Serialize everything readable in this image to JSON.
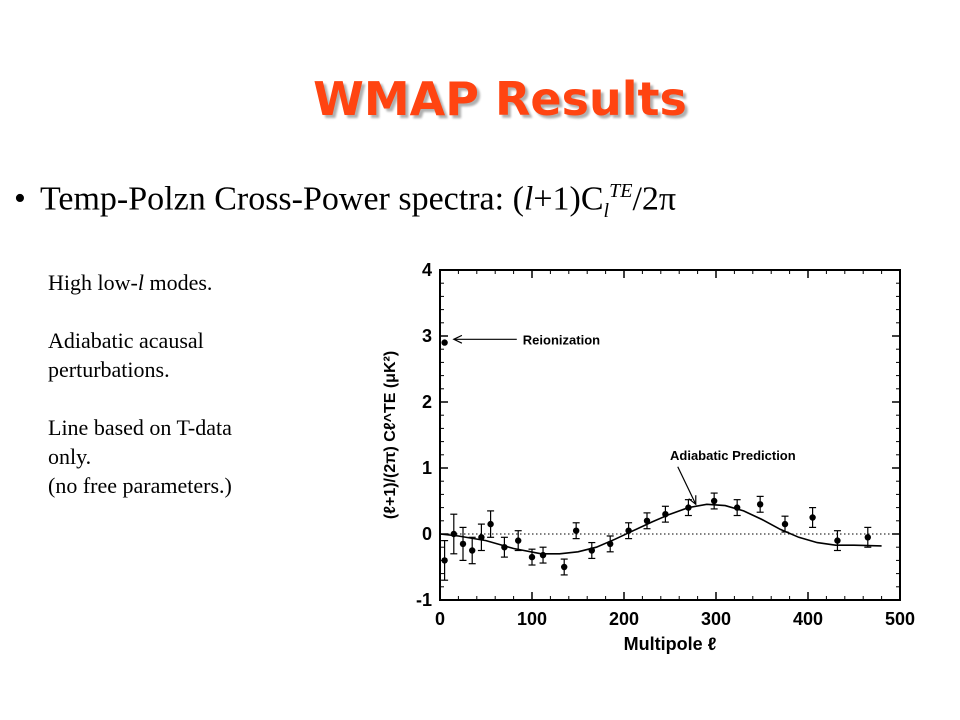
{
  "slide": {
    "title": "WMAP Results",
    "bullet": {
      "marker": "•",
      "prefix": "Temp-Polzn Cross-Power spectra: (",
      "l1": "l",
      "mid": "+1)C",
      "sub": "l",
      "sup": "TE",
      "suffix": "/2π"
    },
    "notes": {
      "line1_pre": "High low-",
      "line1_l": "l",
      "line1_post": " modes.",
      "line2": "Adiabatic acausal",
      "line3": "perturbations.",
      "line4": "Line based on T-data",
      "line5": "only.",
      "line6": "(no free parameters.)"
    }
  },
  "chart_data": {
    "type": "scatter",
    "xlabel": "Multipole ℓ",
    "ylabel": "(ℓ+1)/(2π) Cℓ^TE (μK²)",
    "xlim": [
      0,
      500
    ],
    "ylim": [
      -1,
      4
    ],
    "xticks": [
      0,
      100,
      200,
      300,
      400,
      500
    ],
    "yticks": [
      -1,
      0,
      1,
      2,
      3,
      4
    ],
    "zero_line": "dotted",
    "annotations": [
      {
        "text": "Reionization",
        "x": 90,
        "y": 2.95,
        "arrow_to": [
          15,
          2.95
        ]
      },
      {
        "text": "Adiabatic Prediction",
        "x": 250,
        "y": 1.2,
        "arrow_to": [
          278,
          0.45
        ]
      }
    ],
    "series": [
      {
        "kind": "points",
        "x": [
          5,
          15,
          25,
          35,
          45,
          55,
          70,
          85,
          100,
          112,
          135,
          148,
          165,
          185,
          205,
          225,
          245,
          270,
          298,
          323,
          348,
          375,
          405,
          432,
          465
        ],
        "y": [
          -0.4,
          0.0,
          -0.15,
          -0.25,
          -0.05,
          0.15,
          -0.2,
          -0.1,
          -0.35,
          -0.32,
          -0.5,
          0.05,
          -0.25,
          -0.15,
          0.05,
          0.2,
          0.3,
          0.4,
          0.5,
          0.4,
          0.45,
          0.15,
          0.25,
          -0.1,
          -0.05
        ],
        "err": [
          0.3,
          0.3,
          0.25,
          0.2,
          0.2,
          0.2,
          0.15,
          0.15,
          0.12,
          0.12,
          0.12,
          0.12,
          0.12,
          0.12,
          0.12,
          0.12,
          0.12,
          0.12,
          0.12,
          0.12,
          0.12,
          0.12,
          0.15,
          0.15,
          0.15
        ]
      },
      {
        "kind": "line",
        "x": [
          0,
          20,
          50,
          80,
          110,
          130,
          150,
          170,
          190,
          210,
          230,
          250,
          270,
          290,
          310,
          330,
          350,
          370,
          390,
          410,
          430,
          450,
          480
        ],
        "y": [
          0.0,
          -0.03,
          -0.1,
          -0.22,
          -0.3,
          -0.3,
          -0.27,
          -0.2,
          -0.08,
          0.05,
          0.18,
          0.3,
          0.4,
          0.45,
          0.43,
          0.35,
          0.22,
          0.07,
          -0.05,
          -0.13,
          -0.17,
          -0.17,
          -0.18
        ]
      }
    ],
    "marks": {
      "point_radius": 3.2,
      "cap_width": 3.5
    }
  }
}
